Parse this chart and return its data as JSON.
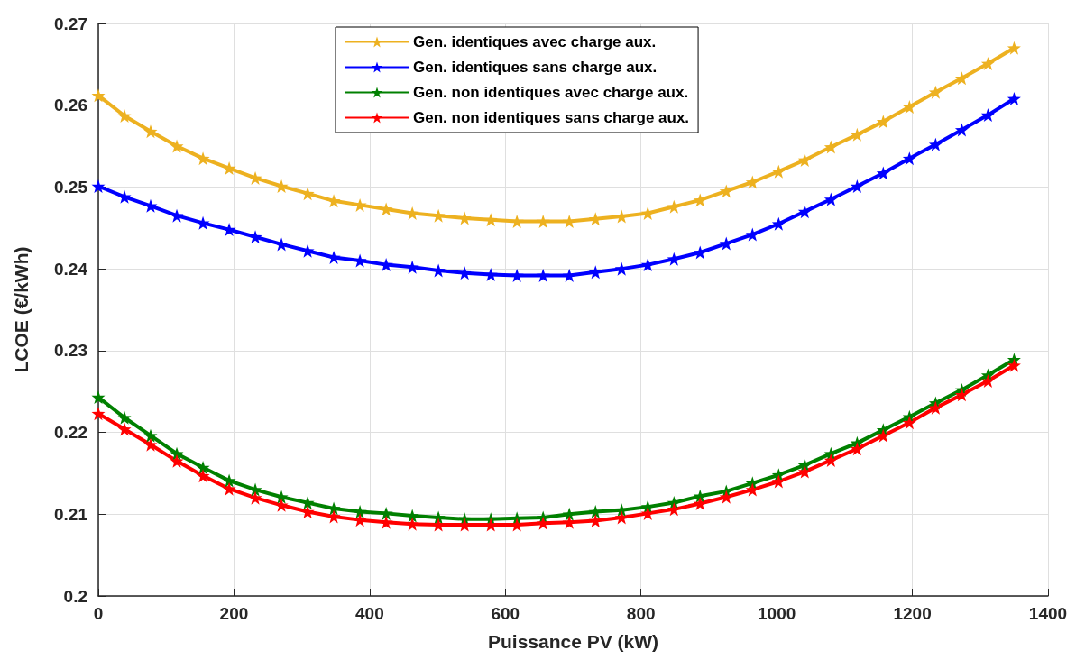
{
  "chart_data": {
    "type": "line",
    "xlabel": "Puissance PV (kW)",
    "ylabel": "LCOE (€/kWh)",
    "x": [
      0,
      38.6,
      77.1,
      115.7,
      154.3,
      192.9,
      231.4,
      270,
      308.6,
      347.1,
      385.7,
      424.3,
      462.9,
      501.4,
      540,
      578.6,
      617.1,
      655.7,
      694.3,
      732.9,
      771.4,
      810,
      848.6,
      887.1,
      925.7,
      964.3,
      1002.9,
      1041.4,
      1080,
      1118.6,
      1157.1,
      1195.7,
      1234.3,
      1272.9,
      1311.4,
      1350
    ],
    "xlim": [
      0,
      1400
    ],
    "xticks": [
      0,
      200,
      400,
      600,
      800,
      1000,
      1200,
      1400
    ],
    "ylim": [
      0.2,
      0.27
    ],
    "yticks": [
      0.2,
      0.21,
      0.22,
      0.23,
      0.24,
      0.25,
      0.26,
      0.27
    ],
    "grid": true,
    "legend": "top",
    "marker": "star",
    "line_style": "solid",
    "series": [
      {
        "name": "Gen. identiques avec charge aux.",
        "color": "#edb120",
        "values": [
          0.2612,
          0.2587,
          0.2568,
          0.255,
          0.2535,
          0.2523,
          0.2511,
          0.2501,
          0.2492,
          0.2483,
          0.2478,
          0.2473,
          0.2468,
          0.2465,
          0.2462,
          0.246,
          0.2458,
          0.2458,
          0.2458,
          0.2461,
          0.2464,
          0.2468,
          0.2476,
          0.2484,
          0.2495,
          0.2506,
          0.2519,
          0.2533,
          0.2549,
          0.2564,
          0.258,
          0.2598,
          0.2616,
          0.2633,
          0.2651,
          0.267
        ]
      },
      {
        "name": "Gen. identiques sans charge aux.",
        "color": "#0000ff",
        "values": [
          0.2501,
          0.2488,
          0.2477,
          0.2465,
          0.2456,
          0.2448,
          0.2439,
          0.243,
          0.2422,
          0.2414,
          0.241,
          0.2405,
          0.2402,
          0.2398,
          0.2395,
          0.2393,
          0.2392,
          0.2392,
          0.2392,
          0.2396,
          0.24,
          0.2405,
          0.2412,
          0.242,
          0.2431,
          0.2442,
          0.2455,
          0.247,
          0.2485,
          0.2501,
          0.2517,
          0.2535,
          0.2552,
          0.257,
          0.2588,
          0.2608
        ]
      },
      {
        "name": "Gen. non identiques avec charge aux.",
        "color": "#008000",
        "values": [
          0.2243,
          0.2218,
          0.2196,
          0.2174,
          0.2157,
          0.2141,
          0.213,
          0.2121,
          0.2114,
          0.2107,
          0.2103,
          0.2101,
          0.2098,
          0.2096,
          0.2094,
          0.2094,
          0.2095,
          0.2096,
          0.21,
          0.2103,
          0.2105,
          0.2109,
          0.2114,
          0.2122,
          0.2128,
          0.2138,
          0.2148,
          0.216,
          0.2174,
          0.2187,
          0.2203,
          0.2219,
          0.2236,
          0.2252,
          0.227,
          0.2289
        ]
      },
      {
        "name": "Gen. non identiques sans charge aux.",
        "color": "#ff0000",
        "values": [
          0.2223,
          0.2204,
          0.2185,
          0.2165,
          0.2147,
          0.2131,
          0.212,
          0.2111,
          0.2103,
          0.2097,
          0.2093,
          0.209,
          0.2088,
          0.2087,
          0.2087,
          0.2087,
          0.2087,
          0.2089,
          0.209,
          0.2092,
          0.2096,
          0.2101,
          0.2106,
          0.2113,
          0.2121,
          0.213,
          0.214,
          0.2152,
          0.2166,
          0.218,
          0.2196,
          0.2212,
          0.223,
          0.2246,
          0.2263,
          0.2282
        ]
      }
    ]
  }
}
